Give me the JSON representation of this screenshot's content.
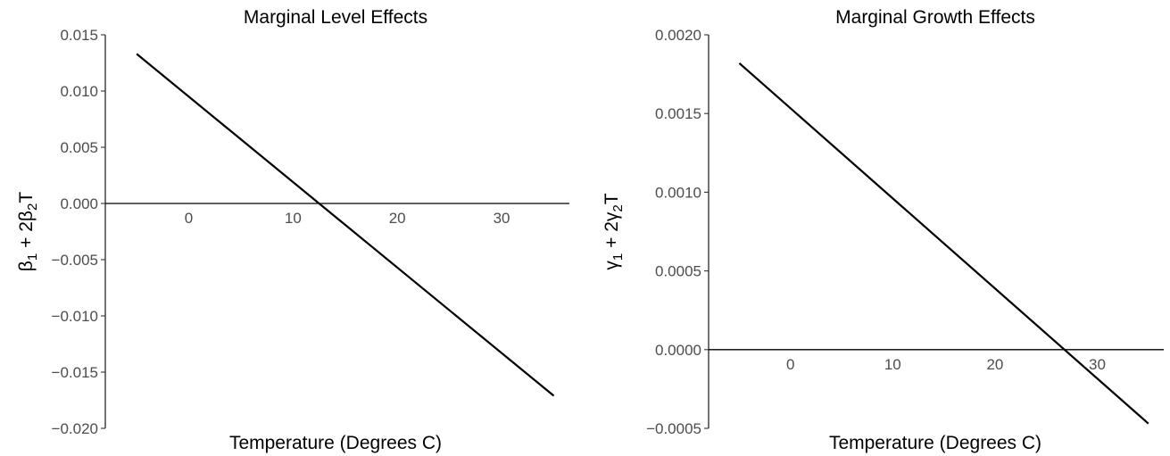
{
  "chart_data": [
    {
      "type": "line",
      "title": "Marginal Level Effects",
      "xlabel": "Temperature (Degrees C)",
      "ylabel": "β1 + 2β2T",
      "ylabel_parts": {
        "a": "β",
        "a_sub": "1",
        "b": " + 2β",
        "b_sub": "2",
        "c": "T"
      },
      "xlim": [
        -8,
        36.5
      ],
      "ylim": [
        -0.02,
        0.015
      ],
      "x_ticks": [
        0,
        10,
        20,
        30
      ],
      "x_tick_labels": [
        "0",
        "10",
        "20",
        "30"
      ],
      "y_ticks": [
        -0.02,
        -0.015,
        -0.01,
        -0.005,
        0,
        0.005,
        0.01,
        0.015
      ],
      "y_tick_labels": [
        "−0.020",
        "−0.015",
        "−0.010",
        "−0.005",
        "0.000",
        "0.005",
        "0.010",
        "0.015"
      ],
      "hline": 0,
      "grid": false,
      "series": [
        {
          "x": [
            -5,
            35
          ],
          "y": [
            0.0133,
            -0.0171
          ]
        }
      ]
    },
    {
      "type": "line",
      "title": "Marginal Growth Effects",
      "xlabel": "Temperature (Degrees C)",
      "ylabel": "γ1 + 2γ2T",
      "ylabel_parts": {
        "a": "γ",
        "a_sub": "1",
        "b": " + 2γ",
        "b_sub": "2",
        "c": "T"
      },
      "xlim": [
        -8,
        36.5
      ],
      "ylim": [
        -0.0005,
        0.002
      ],
      "x_ticks": [
        0,
        10,
        20,
        30
      ],
      "x_tick_labels": [
        "0",
        "10",
        "20",
        "30"
      ],
      "y_ticks": [
        -0.0005,
        0,
        0.0005,
        0.001,
        0.0015,
        0.002
      ],
      "y_tick_labels": [
        "−0.0005",
        "0.0000",
        "0.0005",
        "0.0010",
        "0.0015",
        "0.0020"
      ],
      "hline": 0,
      "grid": false,
      "series": [
        {
          "x": [
            -5,
            35
          ],
          "y": [
            0.00182,
            -0.00047
          ]
        }
      ]
    }
  ]
}
